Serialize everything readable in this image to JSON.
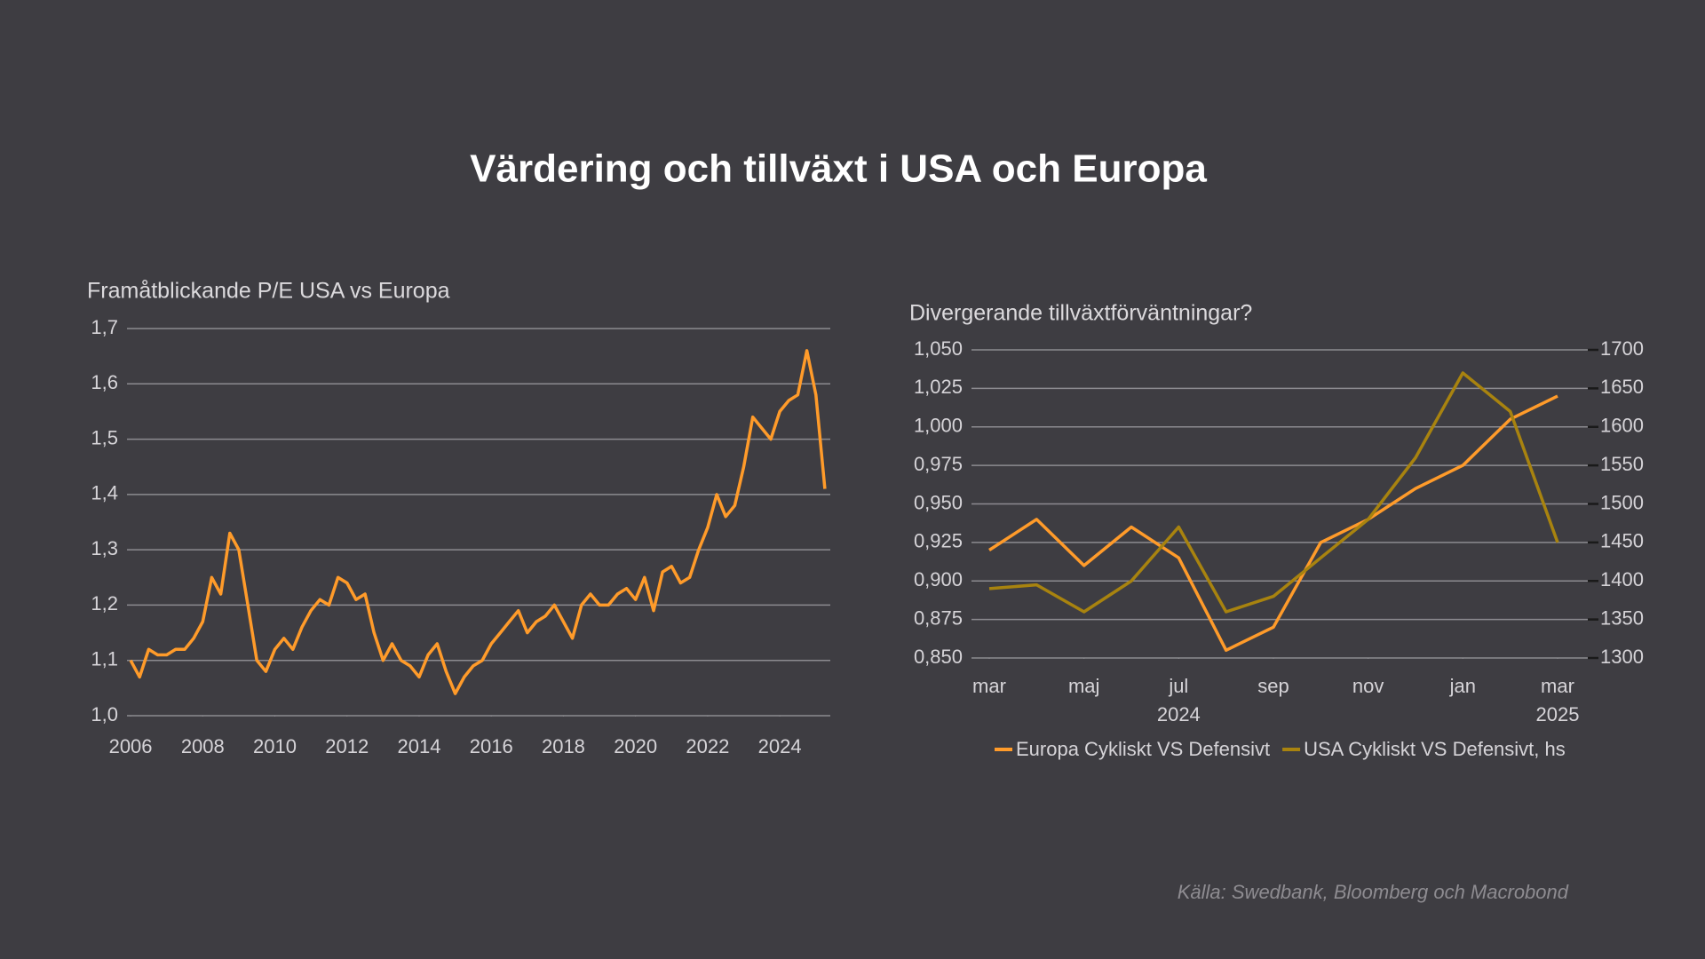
{
  "title": "Värdering och tillväxt i USA och Europa",
  "source": "Källa: Swedbank, Bloomberg och Macrobond",
  "chart_data": [
    {
      "type": "line",
      "title": "Framåtblickande P/E USA vs Europa",
      "color": "#ff9b2a",
      "x": [
        2006,
        2006.25,
        2006.5,
        2006.75,
        2007,
        2007.25,
        2007.5,
        2007.75,
        2008,
        2008.25,
        2008.5,
        2008.75,
        2009,
        2009.25,
        2009.5,
        2009.75,
        2010,
        2010.25,
        2010.5,
        2010.75,
        2011,
        2011.25,
        2011.5,
        2011.75,
        2012,
        2012.25,
        2012.5,
        2012.75,
        2013,
        2013.25,
        2013.5,
        2013.75,
        2014,
        2014.25,
        2014.5,
        2014.75,
        2015,
        2015.25,
        2015.5,
        2015.75,
        2016,
        2016.25,
        2016.5,
        2016.75,
        2017,
        2017.25,
        2017.5,
        2017.75,
        2018,
        2018.25,
        2018.5,
        2018.75,
        2019,
        2019.25,
        2019.5,
        2019.75,
        2020,
        2020.25,
        2020.5,
        2020.75,
        2021,
        2021.25,
        2021.5,
        2021.75,
        2022,
        2022.25,
        2022.5,
        2022.75,
        2023,
        2023.25,
        2023.5,
        2023.75,
        2024,
        2024.25,
        2024.5,
        2024.75,
        2025,
        2025.25
      ],
      "values": [
        1.1,
        1.07,
        1.12,
        1.11,
        1.11,
        1.12,
        1.12,
        1.14,
        1.17,
        1.25,
        1.22,
        1.33,
        1.3,
        1.2,
        1.1,
        1.08,
        1.12,
        1.14,
        1.12,
        1.16,
        1.19,
        1.21,
        1.2,
        1.25,
        1.24,
        1.21,
        1.22,
        1.15,
        1.1,
        1.13,
        1.1,
        1.09,
        1.07,
        1.11,
        1.13,
        1.08,
        1.04,
        1.07,
        1.09,
        1.1,
        1.13,
        1.15,
        1.17,
        1.19,
        1.15,
        1.17,
        1.18,
        1.2,
        1.17,
        1.14,
        1.2,
        1.22,
        1.2,
        1.2,
        1.22,
        1.23,
        1.21,
        1.25,
        1.19,
        1.26,
        1.27,
        1.24,
        1.25,
        1.3,
        1.34,
        1.4,
        1.36,
        1.38,
        1.45,
        1.54,
        1.52,
        1.5,
        1.55,
        1.57,
        1.58,
        1.66,
        1.58,
        1.41
      ],
      "xlim": [
        2005.9,
        2025.4
      ],
      "xticks": [
        2006,
        2008,
        2010,
        2012,
        2014,
        2016,
        2018,
        2020,
        2022,
        2024
      ],
      "ylim": [
        1.0,
        1.7
      ],
      "yticks": [
        {
          "value": 1.0,
          "label": "1,0"
        },
        {
          "value": 1.1,
          "label": "1,1"
        },
        {
          "value": 1.2,
          "label": "1,2"
        },
        {
          "value": 1.3,
          "label": "1,3"
        },
        {
          "value": 1.4,
          "label": "1,4"
        },
        {
          "value": 1.5,
          "label": "1,5"
        },
        {
          "value": 1.6,
          "label": "1,6"
        },
        {
          "value": 1.7,
          "label": "1,7"
        }
      ],
      "grid": true
    },
    {
      "type": "line",
      "title": "Divergerande tillväxtförväntningar?",
      "x": [
        "2024-03",
        "2024-04",
        "2024-05",
        "2024-06",
        "2024-07",
        "2024-08",
        "2024-09",
        "2024-10",
        "2024-11",
        "2024-12",
        "2025-01",
        "2025-02",
        "2025-03"
      ],
      "series": [
        {
          "name": "Europa Cykliskt VS Defensivt",
          "color": "#ff9b2a",
          "values": [
            0.92,
            0.94,
            0.91,
            0.935,
            0.915,
            0.855,
            0.87,
            0.925,
            0.94,
            0.96,
            0.975,
            1.005,
            1.02
          ]
        },
        {
          "name": "USA Cykliskt VS Defensivt, hs",
          "color": "#a8830f",
          "axis": "y2",
          "values": [
            1390,
            1395,
            1360,
            1400,
            1470,
            1360,
            1380,
            1430,
            1480,
            1560,
            1670,
            1620,
            1450
          ]
        }
      ],
      "xlim": [
        "2024-03",
        "2025-03"
      ],
      "xticks": [
        {
          "value": "2024-03",
          "label": "mar"
        },
        {
          "value": "2024-05",
          "label": "maj"
        },
        {
          "value": "2024-07",
          "label": "jul"
        },
        {
          "value": "2024-09",
          "label": "sep"
        },
        {
          "value": "2024-11",
          "label": "nov"
        },
        {
          "value": "2025-01",
          "label": "jan"
        },
        {
          "value": "2025-03",
          "label": "mar"
        }
      ],
      "year_labels": [
        {
          "value": "2024-07",
          "label": "2024"
        },
        {
          "value": "2025-03",
          "label": "2025"
        }
      ],
      "ylim": [
        0.85,
        1.05
      ],
      "yticks": [
        {
          "value": 0.85,
          "label": "0,850"
        },
        {
          "value": 0.875,
          "label": "0,875"
        },
        {
          "value": 0.9,
          "label": "0,900"
        },
        {
          "value": 0.925,
          "label": "0,925"
        },
        {
          "value": 0.95,
          "label": "0,950"
        },
        {
          "value": 0.975,
          "label": "0,975"
        },
        {
          "value": 1.0,
          "label": "1,000"
        },
        {
          "value": 1.025,
          "label": "1,025"
        },
        {
          "value": 1.05,
          "label": "1,050"
        }
      ],
      "y2lim": [
        1300,
        1700
      ],
      "y2ticks": [
        1300,
        1350,
        1400,
        1450,
        1500,
        1550,
        1600,
        1650,
        1700
      ],
      "grid": true
    }
  ]
}
